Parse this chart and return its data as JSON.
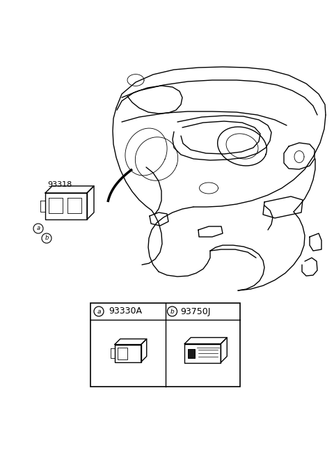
{
  "background_color": "#ffffff",
  "part_number_main": "93318",
  "part_a_code": "93330A",
  "part_b_code": "93750J",
  "label_a": "a",
  "label_b": "b",
  "line_color": "#000000",
  "lw_main": 1.0,
  "lw_thin": 0.6,
  "lw_thick": 2.5
}
